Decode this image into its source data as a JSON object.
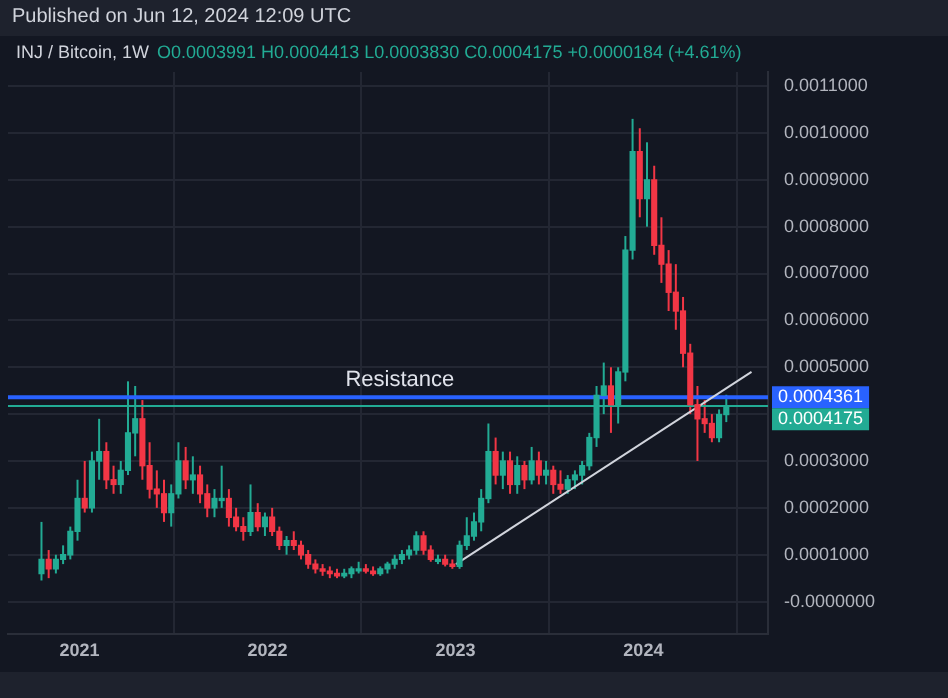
{
  "chart_data": {
    "type": "candlestick",
    "title": "INJ / Bitcoin, 1W",
    "subtitle": "O0.0003991 H0.0004413 L0.0003830 C0.0004175 +0.0000184 (+4.61%)",
    "annotations": [
      "Published on Jun 12, 2024 12:09 UTC",
      {
        "text": "Resistance",
        "x": "2022-09-15",
        "y": 0.00045
      }
    ],
    "x": [
      "2020-10-19",
      "2020-11-02",
      "2020-11-16",
      "2020-11-30",
      "2020-12-14",
      "2020-12-28",
      "2021-01-11",
      "2021-01-25",
      "2021-02-08",
      "2021-02-22",
      "2021-03-08",
      "2021-03-22",
      "2021-04-05",
      "2021-04-19",
      "2021-05-03",
      "2021-05-17",
      "2021-05-31",
      "2021-06-14",
      "2021-06-28",
      "2021-07-12",
      "2021-07-26",
      "2021-08-09",
      "2021-08-23",
      "2021-09-06",
      "2021-09-20",
      "2021-10-04",
      "2021-10-18",
      "2021-11-01",
      "2021-11-15",
      "2021-11-29",
      "2021-12-13",
      "2021-12-27",
      "2022-01-10",
      "2022-01-24",
      "2022-02-07",
      "2022-02-21",
      "2022-03-07",
      "2022-03-21",
      "2022-04-04",
      "2022-04-18",
      "2022-05-02",
      "2022-05-16",
      "2022-05-30",
      "2022-06-13",
      "2022-06-27",
      "2022-07-11",
      "2022-07-25",
      "2022-08-08",
      "2022-08-22",
      "2022-09-05",
      "2022-09-19",
      "2022-10-03",
      "2022-10-17",
      "2022-10-31",
      "2022-11-14",
      "2022-11-28",
      "2022-12-12",
      "2022-12-26",
      "2023-01-09",
      "2023-01-23",
      "2023-02-06",
      "2023-02-20",
      "2023-03-06",
      "2023-03-20",
      "2023-04-03",
      "2023-04-17",
      "2023-05-01",
      "2023-05-15",
      "2023-05-29",
      "2023-06-12",
      "2023-06-26",
      "2023-07-10",
      "2023-07-24",
      "2023-08-07",
      "2023-08-21",
      "2023-09-04",
      "2023-09-18",
      "2023-10-02",
      "2023-10-16",
      "2023-10-30",
      "2023-11-13",
      "2023-11-27",
      "2023-12-11",
      "2023-12-25",
      "2024-01-08",
      "2024-01-22",
      "2024-02-05",
      "2024-02-19",
      "2024-03-04",
      "2024-03-18",
      "2024-04-01",
      "2024-04-15",
      "2024-04-29",
      "2024-05-13",
      "2024-05-27",
      "2024-06-10"
    ],
    "ohlc": [
      [
        6e-05,
        0.00017,
        4.5e-05,
        9e-05
      ],
      [
        9e-05,
        0.00011,
        5e-05,
        7e-05
      ],
      [
        7e-05,
        0.0001,
        6e-05,
        9e-05
      ],
      [
        9e-05,
        0.00012,
        8e-05,
        0.0001
      ],
      [
        0.0001,
        0.00016,
        9e-05,
        0.00015
      ],
      [
        0.00015,
        0.00026,
        0.00013,
        0.00022
      ],
      [
        0.00022,
        0.0003,
        0.00019,
        0.0002
      ],
      [
        0.0002,
        0.00032,
        0.00019,
        0.0003
      ],
      [
        0.0003,
        0.00039,
        0.00026,
        0.00032
      ],
      [
        0.00032,
        0.00034,
        0.00024,
        0.00026
      ],
      [
        0.00026,
        0.00029,
        0.00023,
        0.00025
      ],
      [
        0.00025,
        0.0003,
        0.00023,
        0.00028
      ],
      [
        0.00028,
        0.00047,
        0.00027,
        0.00036
      ],
      [
        0.00036,
        0.00046,
        0.00031,
        0.00039
      ],
      [
        0.00039,
        0.00043,
        0.00026,
        0.00029
      ],
      [
        0.00029,
        0.00034,
        0.00022,
        0.00024
      ],
      [
        0.00024,
        0.00028,
        0.0002,
        0.00023
      ],
      [
        0.00023,
        0.00026,
        0.00017,
        0.00019
      ],
      [
        0.00019,
        0.00025,
        0.00016,
        0.00023
      ],
      [
        0.00023,
        0.00034,
        0.00022,
        0.0003
      ],
      [
        0.0003,
        0.00033,
        0.00024,
        0.00026
      ],
      [
        0.00026,
        0.00031,
        0.00023,
        0.00027
      ],
      [
        0.00027,
        0.00029,
        0.00021,
        0.00023
      ],
      [
        0.00023,
        0.00025,
        0.00018,
        0.0002
      ],
      [
        0.0002,
        0.00024,
        0.00018,
        0.00022
      ],
      [
        0.00022,
        0.00029,
        0.0002,
        0.00022
      ],
      [
        0.00022,
        0.00024,
        0.00016,
        0.00018
      ],
      [
        0.00018,
        0.0002,
        0.00015,
        0.00016
      ],
      [
        0.00016,
        0.00018,
        0.00013,
        0.00015
      ],
      [
        0.00015,
        0.00025,
        0.00014,
        0.00019
      ],
      [
        0.00019,
        0.00021,
        0.00015,
        0.00016
      ],
      [
        0.00016,
        0.00019,
        0.00014,
        0.00018
      ],
      [
        0.00018,
        0.0002,
        0.00014,
        0.00015
      ],
      [
        0.00015,
        0.00016,
        0.00011,
        0.00012
      ],
      [
        0.00012,
        0.00014,
        0.0001,
        0.00013
      ],
      [
        0.00013,
        0.00015,
        0.00011,
        0.00012
      ],
      [
        0.00012,
        0.00013,
        9e-05,
        0.0001
      ],
      [
        0.0001,
        0.00011,
        7e-05,
        8e-05
      ],
      [
        8e-05,
        9e-05,
        6e-05,
        7e-05
      ],
      [
        7e-05,
        8e-05,
        5.5e-05,
        6.5e-05
      ],
      [
        6.5e-05,
        7.5e-05,
        5e-05,
        6e-05
      ],
      [
        6e-05,
        7e-05,
        5e-05,
        5.5e-05
      ],
      [
        5.5e-05,
        7e-05,
        5e-05,
        6e-05
      ],
      [
        6e-05,
        7.5e-05,
        5e-05,
        7e-05
      ],
      [
        7e-05,
        8.5e-05,
        6e-05,
        7e-05
      ],
      [
        7e-05,
        8e-05,
        6e-05,
        6.5e-05
      ],
      [
        6.5e-05,
        7.5e-05,
        5.5e-05,
        6e-05
      ],
      [
        6e-05,
        7.5e-05,
        5.5e-05,
        7e-05
      ],
      [
        7e-05,
        8.5e-05,
        6e-05,
        8e-05
      ],
      [
        8e-05,
        0.0001,
        7e-05,
        9e-05
      ],
      [
        9e-05,
        0.00011,
        8e-05,
        0.0001
      ],
      [
        0.0001,
        0.00012,
        9e-05,
        0.00011
      ],
      [
        0.00011,
        0.00015,
        0.0001,
        0.00014
      ],
      [
        0.00014,
        0.00015,
        0.0001,
        0.00011
      ],
      [
        0.00011,
        0.00012,
        8.5e-05,
        9e-05
      ],
      [
        9e-05,
        0.0001,
        8e-05,
        9e-05
      ],
      [
        9e-05,
        0.0001,
        7.5e-05,
        8e-05
      ],
      [
        8e-05,
        9e-05,
        7e-05,
        7.5e-05
      ],
      [
        7.5e-05,
        0.00013,
        7e-05,
        0.00012
      ],
      [
        0.00012,
        0.00018,
        0.00011,
        0.00014
      ],
      [
        0.00014,
        0.00019,
        0.00013,
        0.00017
      ],
      [
        0.00017,
        0.00024,
        0.00015,
        0.00022
      ],
      [
        0.00022,
        0.00038,
        0.00021,
        0.00032
      ],
      [
        0.00032,
        0.00035,
        0.00025,
        0.00027
      ],
      [
        0.00027,
        0.00032,
        0.00024,
        0.0003
      ],
      [
        0.0003,
        0.00032,
        0.00023,
        0.00025
      ],
      [
        0.00025,
        0.00031,
        0.00023,
        0.00029
      ],
      [
        0.00029,
        0.0003,
        0.00024,
        0.00026
      ],
      [
        0.00026,
        0.00033,
        0.00025,
        0.0003
      ],
      [
        0.0003,
        0.00032,
        0.00025,
        0.00027
      ],
      [
        0.00027,
        0.0003,
        0.00025,
        0.00028
      ],
      [
        0.00028,
        0.00029,
        0.00023,
        0.00025
      ],
      [
        0.00025,
        0.00028,
        0.00023,
        0.00024
      ],
      [
        0.00024,
        0.00027,
        0.00023,
        0.00026
      ],
      [
        0.00026,
        0.00028,
        0.00024,
        0.00027
      ],
      [
        0.00027,
        0.0003,
        0.00025,
        0.00029
      ],
      [
        0.00029,
        0.00036,
        0.00028,
        0.00035
      ],
      [
        0.00035,
        0.00046,
        0.00033,
        0.00044
      ],
      [
        0.00044,
        0.00051,
        0.0004,
        0.00046
      ],
      [
        0.00046,
        0.0005,
        0.00036,
        0.00042
      ],
      [
        0.00042,
        0.0005,
        0.00038,
        0.00049
      ],
      [
        0.00049,
        0.00078,
        0.00047,
        0.00075
      ],
      [
        0.00075,
        0.00103,
        0.00073,
        0.00096
      ],
      [
        0.00096,
        0.00101,
        0.00082,
        0.00086
      ],
      [
        0.00086,
        0.00098,
        0.0008,
        0.0009
      ],
      [
        0.0009,
        0.00093,
        0.00074,
        0.00076
      ],
      [
        0.00076,
        0.00082,
        0.00068,
        0.00072
      ],
      [
        0.00072,
        0.00075,
        0.00062,
        0.00066
      ],
      [
        0.00066,
        0.00072,
        0.00058,
        0.00062
      ],
      [
        0.00062,
        0.00065,
        0.0005,
        0.00053
      ],
      [
        0.00053,
        0.00055,
        0.0004,
        0.00042
      ],
      [
        0.00042,
        0.00046,
        0.0003,
        0.00039
      ],
      [
        0.00039,
        0.00043,
        0.00036,
        0.00038
      ],
      [
        0.00038,
        0.0004,
        0.00034,
        0.00035
      ],
      [
        0.00035,
        0.00041,
        0.00034,
        0.0003991
      ],
      [
        0.0003991,
        0.0004413,
        0.000383,
        0.0004175
      ]
    ],
    "series": [
      {
        "type": "line",
        "color": "#d1d4dc",
        "x": [
          "2023-01-02",
          "2024-07-29"
        ],
        "values": [
          8e-05,
          0.00049
        ]
      }
    ],
    "ref_lines": [
      {
        "axis": "y",
        "value": 0.0004361,
        "label": "0.0004361",
        "color": "#2962ff"
      },
      {
        "axis": "y",
        "value": 0.0004175,
        "label": "0.0004175",
        "color": "#22ab94"
      }
    ],
    "xlim": [
      "2020-08-15",
      "2024-08-30"
    ],
    "xticks": [
      {
        "value": "2021-01-01",
        "label": "2021"
      },
      {
        "value": "2022-01-01",
        "label": "2022"
      },
      {
        "value": "2023-01-01",
        "label": "2023"
      },
      {
        "value": "2024-01-01",
        "label": "2024"
      }
    ],
    "ylim": [
      -7e-05,
      0.00113
    ],
    "yticks": [
      {
        "value": 0,
        "label": "-0.0000000"
      },
      {
        "value": 0.0001,
        "label": "0.0001000"
      },
      {
        "value": 0.0002,
        "label": "0.0002000"
      },
      {
        "value": 0.0003,
        "label": "0.0003000"
      },
      {
        "value": 0.0004,
        "label": null
      },
      {
        "value": 0.0005,
        "label": "0.0005000"
      },
      {
        "value": 0.0006,
        "label": "0.0006000"
      },
      {
        "value": 0.0007,
        "label": "0.0007000"
      },
      {
        "value": 0.0008,
        "label": "0.0008000"
      },
      {
        "value": 0.0009,
        "label": "0.0009000"
      },
      {
        "value": 0.001,
        "label": "0.0010000"
      },
      {
        "value": 0.0011,
        "label": "0.0011000"
      }
    ],
    "grid": true
  }
}
